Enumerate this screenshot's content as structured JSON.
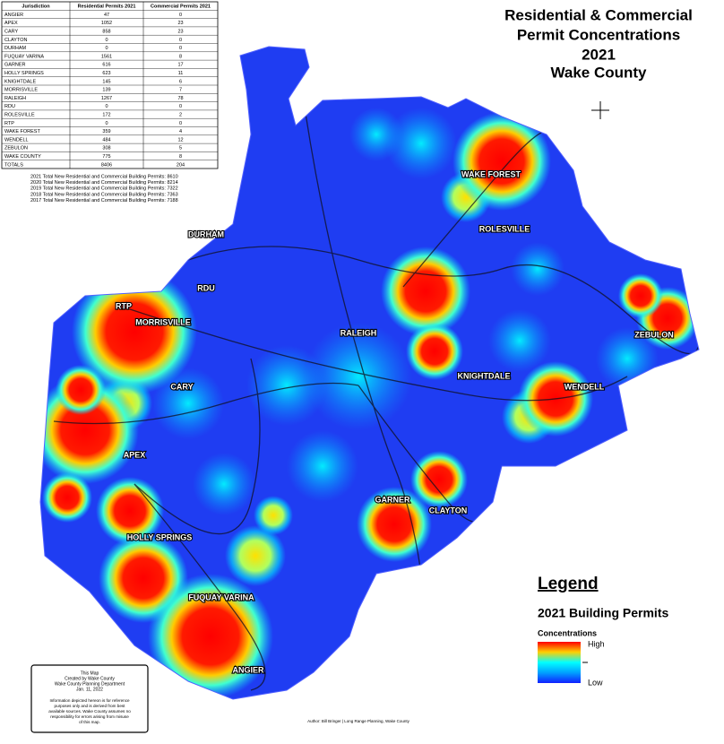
{
  "title_lines": [
    "Residential & Commercial",
    "Permit Concentrations",
    "2021",
    "Wake County"
  ],
  "table": {
    "header": [
      "Jurisdiction",
      "Residential Permits 2021",
      "Commercial Permits 2021"
    ],
    "rows": [
      [
        "ANGIER",
        47,
        0
      ],
      [
        "APEX",
        1052,
        23
      ],
      [
        "CARY",
        858,
        23
      ],
      [
        "CLAYTON",
        0,
        0
      ],
      [
        "DURHAM",
        0,
        0
      ],
      [
        "FUQUAY VARINA",
        1561,
        8
      ],
      [
        "GARNER",
        616,
        17
      ],
      [
        "HOLLY SPRINGS",
        623,
        11
      ],
      [
        "KNIGHTDALE",
        145,
        6
      ],
      [
        "MORRISVILLE",
        139,
        7
      ],
      [
        "RALEIGH",
        1267,
        78
      ],
      [
        "RDU",
        0,
        0
      ],
      [
        "ROLESVILLE",
        172,
        2
      ],
      [
        "RTP",
        0,
        0
      ],
      [
        "WAKE FOREST",
        359,
        4
      ],
      [
        "WENDELL",
        484,
        12
      ],
      [
        "ZEBULON",
        308,
        5
      ],
      [
        "WAKE COUNTY",
        775,
        8
      ],
      [
        "TOTALS",
        8406,
        204
      ]
    ]
  },
  "totals": [
    "2021 Total New Residential and Commercial Building Permits: 8610",
    "2020 Total New Residential and Commercial Building Permits: 8214",
    "2019 Total New Residential and Commercial Building Permits: 7322",
    "2018 Total New Residential and Commercial Building Permits: 7363",
    "2017 Total New Residential and Commercial Building Permits: 7188"
  ],
  "places": [
    "DURHAM",
    "RDU",
    "RTP",
    "MORRISVILLE",
    "RALEIGH",
    "CARY",
    "KNIGHTDALE",
    "WENDELL",
    "ZEBULON",
    "APEX",
    "HOLLY SPRINGS",
    "GARNER",
    "CLAYTON",
    "FUQUAY VARINA",
    "ANGIER",
    "WAKE FOREST",
    "ROLESVILLE"
  ],
  "legend": {
    "title": "Legend",
    "subtitle": "2021 Building Permits",
    "scale_title": "Concentrations",
    "high": "High",
    "low": "Low"
  },
  "note": {
    "lines": [
      "This Map",
      "Created by Wake County",
      "Wake County Planning Department",
      "Jan. 11, 2022"
    ],
    "disclaimer": [
      "Information depicted hereon is for reference",
      "purposes only and is derived from best",
      "available sources. Wake County assumes no",
      "responsibility for errors arising from misuse",
      "of this map."
    ]
  },
  "credit": "Author: Bill Bringer | Long Range Planning, Wake County"
}
